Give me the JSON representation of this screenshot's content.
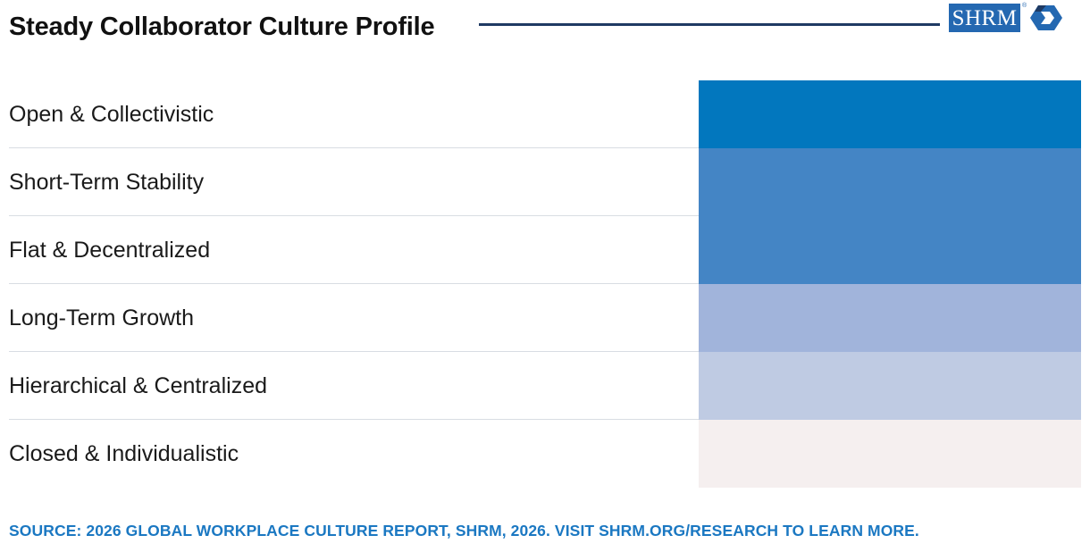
{
  "header": {
    "title": "Steady Collaborator Culture Profile",
    "logo_text": "SHRM",
    "logo_reg": "®"
  },
  "chart_data": {
    "type": "heatmap",
    "title": "Steady Collaborator Culture Profile",
    "categories": [
      "Open & Collectivistic",
      "Short-Term Stability",
      "Flat & Decentralized",
      "Long-Term Growth",
      "Hierarchical & Centralized",
      "Closed & Individualistic"
    ],
    "colors": [
      "#0277be",
      "#4485c5",
      "#4485c5",
      "#a1b4db",
      "#bfcbe3",
      "#f5efef"
    ],
    "grid": false,
    "legend": "none"
  },
  "colors": {
    "title_rule": "#1f3a63",
    "logo_bg": "#2468b1",
    "source_text": "#1b78c2"
  },
  "icons": {
    "logo": "shrm-logo",
    "mark": "shrm-chevron-mark-icon"
  },
  "footer": {
    "source": "SOURCE: 2026 GLOBAL WORKPLACE CULTURE REPORT, SHRM, 2026. VISIT SHRM.ORG/RESEARCH TO LEARN MORE."
  }
}
